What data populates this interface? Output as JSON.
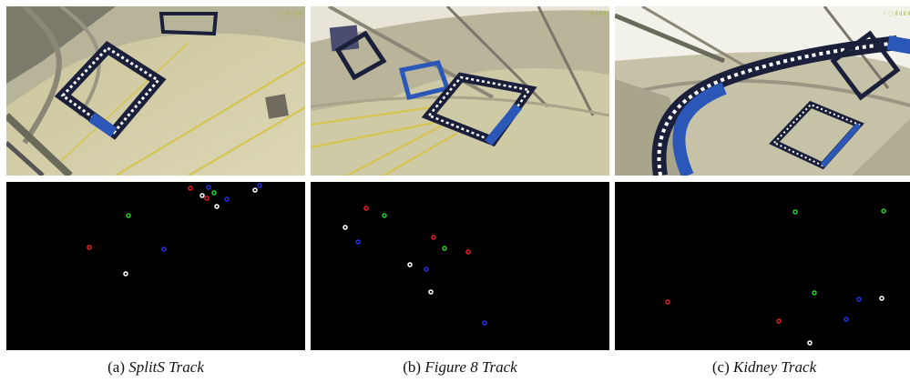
{
  "captions": [
    {
      "label": "(a) ",
      "name": "SplitS Track"
    },
    {
      "label": "(b) ",
      "name": "Figure 8 Track"
    },
    {
      "label": "(c) ",
      "name": "Kidney Track"
    }
  ],
  "colors": {
    "marker_red": "#e02020",
    "marker_green": "#20d020",
    "marker_blue": "#2030e0",
    "marker_white": "#ffffff",
    "gate_dark": "#1a1f3a",
    "gate_blue": "#2b57b8"
  }
}
